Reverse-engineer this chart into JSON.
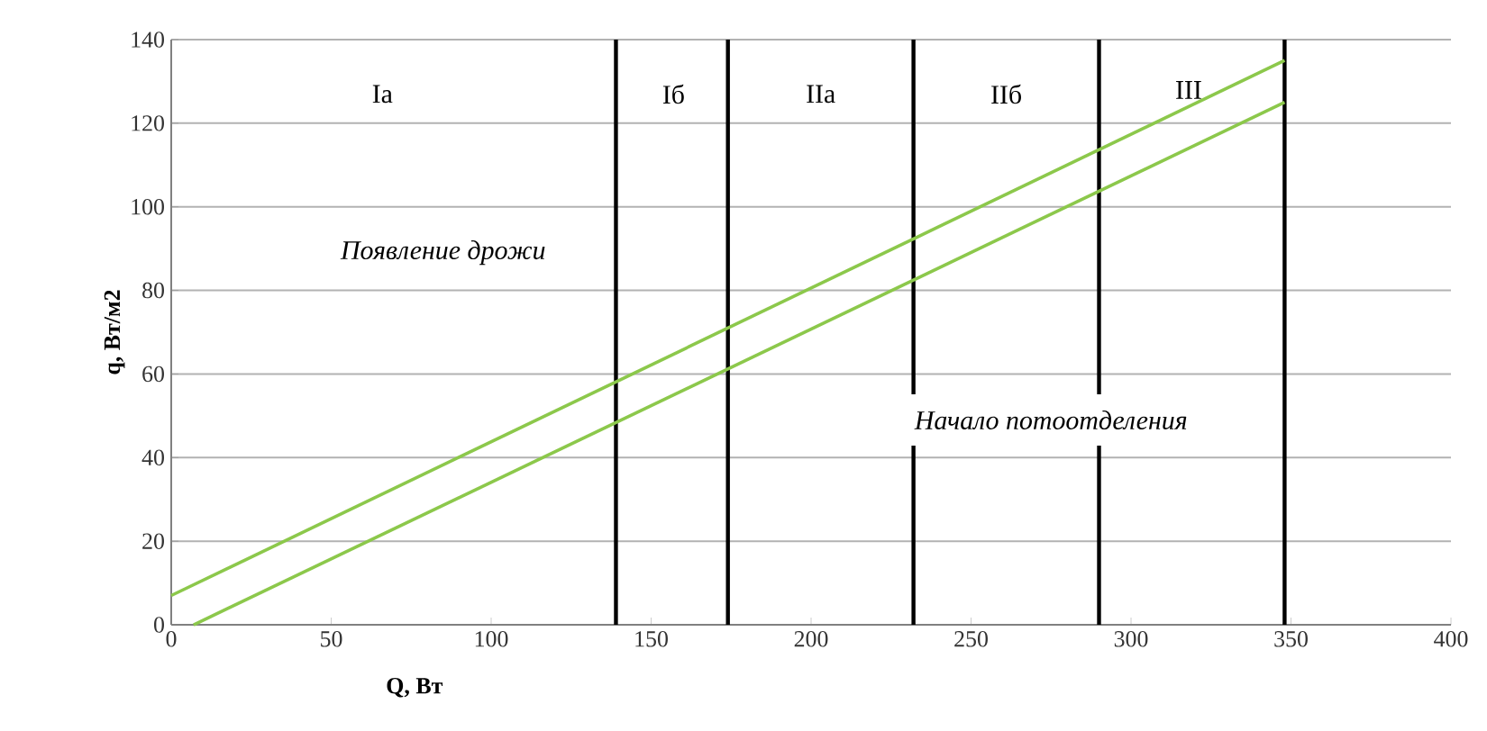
{
  "chart_data": {
    "type": "line",
    "xlabel": "Q, Вт",
    "ylabel": "q, Вт/м2",
    "xlim": [
      0,
      400
    ],
    "xticks": [
      0,
      50,
      100,
      150,
      200,
      250,
      300,
      350,
      400
    ],
    "ylim": [
      0,
      140
    ],
    "yticks": [
      0,
      20,
      40,
      60,
      80,
      100,
      120,
      140
    ],
    "grid": "y",
    "marker": "none",
    "line_style": "solid",
    "series": [
      {
        "color": "#8cc84b",
        "x": [
          0,
          348
        ],
        "values": [
          7,
          135
        ]
      },
      {
        "color": "#8cc84b",
        "x": [
          7,
          348
        ],
        "values": [
          0,
          125
        ]
      }
    ],
    "ref_lines": [
      {
        "axis": "x",
        "value": 139,
        "color": "#000000"
      },
      {
        "axis": "x",
        "value": 174,
        "color": "#000000"
      },
      {
        "axis": "x",
        "value": 232,
        "color": "#000000"
      },
      {
        "axis": "x",
        "value": 290,
        "color": "#000000"
      },
      {
        "axis": "x",
        "value": 348,
        "color": "#000000"
      }
    ],
    "annotations": [
      "Ia",
      "Iб",
      "IIa",
      "IIб",
      "III",
      "*Появление дрожи*",
      "*Начало потоотделения*"
    ]
  }
}
